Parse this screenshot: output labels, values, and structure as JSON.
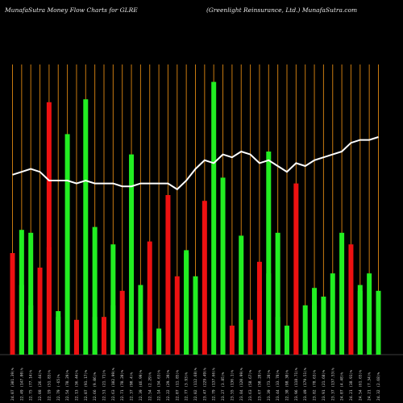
{
  "header": {
    "title_left": "MunafaSutra  Money Flow  Charts for GLRE",
    "title_right": "(Greenlight Reinsurance,  Ltd.) MunafaSutra.com"
  },
  "colors": {
    "background": "#000000",
    "grid": "#c87a10",
    "up_bar": "#22ee22",
    "down_bar": "#ee1111",
    "price_line": "#ffffff"
  },
  "chart_data": {
    "type": "bar",
    "title": "MunafaSutra  Money Flow  Charts for GLRE",
    "subtitle": "(Greenlight Reinsurance,  Ltd.) MunafaSutra.com",
    "ylim": [
      0,
      100
    ],
    "grid": "vertical",
    "categories": [
      "24.07 (301.39)%",
      "22.49 (147.00)%",
      "22.75 (77.14)%",
      "22.08 (26.44)%",
      "22.19 (51.83)%",
      "22.79 (-65)%",
      "22.54 (70.29)%",
      "22.13 (36.44)%",
      "22.07 (91.17)%",
      "22.66 (9.06)%",
      "22.51 (21.71)%",
      "22.63 (102.99)%",
      "22.71 (70.20)%",
      "22.37 (90.4)%",
      "22.39 (46.99)%",
      "22.54 (2.29)%",
      "22.14 (34.63)%",
      "22.22 (29.39)%",
      "22.07 (11.85)%",
      "22.77 (3.93)%",
      "22.02 (112.68)%",
      "23.47 (229.49)%",
      "22.79 (137.66)%",
      "23.27 (3.85)%",
      "23.55 (136.1)%",
      "23.84 (120.99)%",
      "23.63 (58.67)%",
      "23.67 (50.28)%",
      "23.39 (73.28)%",
      "23.44 (33.78)%",
      "22.38 (98.30)%",
      "23.96 (118.71)%",
      "23.49 (179.51)%",
      "23.82 (78.63)%",
      "23.91 (21.68)%",
      "23.37 (137.53)%",
      "24.07 (4.48)%",
      "24.21 (38.91)%",
      "24.54 (61.65)%",
      "24.21 (7.34)%",
      "24.32 (2.68)%"
    ],
    "series": [
      {
        "values": [
          33,
          24,
          42,
          30,
          87,
          15,
          76,
          4,
          88,
          44,
          9,
          38,
          22,
          9,
          8,
          39,
          8,
          55,
          27,
          35,
          3,
          53,
          94,
          61,
          10,
          41,
          0,
          32,
          70,
          42,
          3,
          59,
          5,
          17,
          0,
          0,
          0,
          38,
          24,
          0,
          4
        ]
      },
      {
        "values": [
          35,
          43,
          17,
          0,
          37,
          13,
          0,
          12,
          0,
          13,
          13,
          17,
          0,
          69,
          24,
          19,
          9,
          0,
          0,
          36,
          27,
          0,
          0,
          19,
          0,
          5,
          12,
          22,
          28,
          13,
          10,
          12,
          17,
          23,
          20,
          28,
          42,
          0,
          22,
          28,
          22
        ]
      }
    ],
    "bar_colors": [
      "R",
      "G",
      "G",
      "R",
      "R",
      "G",
      "G",
      "R",
      "G",
      "G",
      "R",
      "G",
      "R",
      "G",
      "G",
      "R",
      "G",
      "R",
      "R",
      "G",
      "G",
      "R",
      "G",
      "G",
      "R",
      "G",
      "R",
      "R",
      "G",
      "G",
      "G",
      "R",
      "G",
      "G",
      "G",
      "G",
      "G",
      "R",
      "G",
      "G",
      "G"
    ],
    "price_line": [
      62,
      63,
      64,
      63,
      60,
      60,
      60,
      59,
      60,
      59,
      59,
      59,
      58,
      58,
      59,
      59,
      59,
      59,
      57,
      60,
      64,
      67,
      66,
      69,
      68,
      70,
      69,
      66,
      67,
      65,
      63,
      66,
      65,
      67,
      68,
      69,
      70,
      73,
      74,
      74,
      75
    ]
  }
}
